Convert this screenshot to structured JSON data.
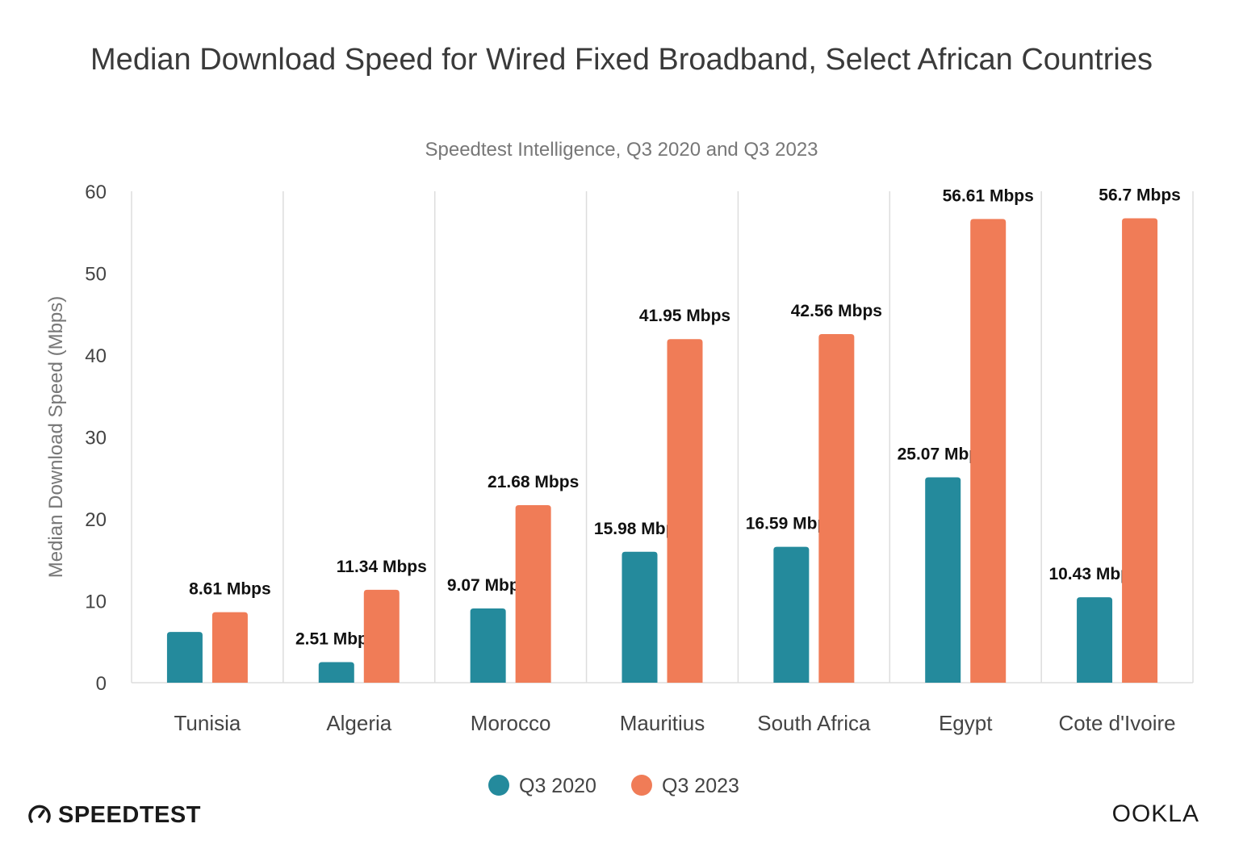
{
  "title": "Median Download Speed for Wired Fixed Broadband, Select African Countries",
  "subtitle": "Speedtest Intelligence, Q3 2020 and Q3 2023",
  "logos": {
    "speedtest": "SPEEDTEST",
    "ookla": "OOKLA"
  },
  "colors": {
    "q3_2020": "#248a9c",
    "q3_2023": "#f07c57",
    "grid": "#dddddd",
    "text": "#444444"
  },
  "chart_data": {
    "type": "bar",
    "title": "Median Download Speed for Wired Fixed Broadband, Select African Countries",
    "subtitle": "Speedtest Intelligence, Q3 2020 and Q3 2023",
    "xlabel": "",
    "ylabel": "Median Download Speed (Mbps)",
    "ylim": [
      0,
      60
    ],
    "yticks": [
      0,
      10,
      20,
      30,
      40,
      50,
      60
    ],
    "grid": "vertical separators between categories",
    "legend_position": "bottom",
    "categories": [
      "Tunisia",
      "Algeria",
      "Morocco",
      "Mauritius",
      "South Africa",
      "Egypt",
      "Cote d'Ivoire"
    ],
    "series": [
      {
        "name": "Q3 2020",
        "color": "#248a9c",
        "values": [
          6.2,
          2.51,
          9.07,
          15.98,
          16.59,
          25.07,
          10.43
        ],
        "labels": [
          "",
          "2.51 Mbps",
          "9.07 Mbps",
          "15.98 Mbps",
          "16.59 Mbps",
          "25.07 Mbps",
          "10.43 Mbps"
        ]
      },
      {
        "name": "Q3 2023",
        "color": "#f07c57",
        "values": [
          8.61,
          11.34,
          21.68,
          41.95,
          42.56,
          56.61,
          56.7
        ],
        "labels": [
          "8.61 Mbps",
          "11.34 Mbps",
          "21.68 Mbps",
          "41.95 Mbps",
          "42.56 Mbps",
          "56.61 Mbps",
          "56.7 Mbps"
        ]
      }
    ]
  }
}
